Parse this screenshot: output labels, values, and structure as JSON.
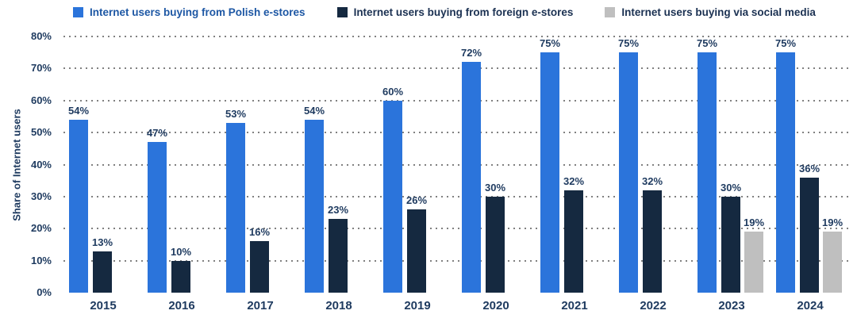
{
  "legend": {
    "items": [
      {
        "label": "Internet users buying from Polish e-stores",
        "swatch_color": "#2B74DB",
        "text_color": "#1D57A4"
      },
      {
        "label": "Internet users buying from foreign e-stores",
        "swatch_color": "#152940",
        "text_color": "#1B3152"
      },
      {
        "label": "Internet users buying via social media",
        "swatch_color": "#BFBFBF",
        "text_color": "#1B3152"
      }
    ]
  },
  "chart_data": {
    "type": "bar",
    "title": "",
    "xlabel": "",
    "ylabel": "Share of Internet users",
    "ylim": [
      0,
      80
    ],
    "ytick_step": 10,
    "tick_suffix": "%",
    "grid": "horizontal-dotted",
    "legend_position": "top",
    "categories": [
      "2015",
      "2016",
      "2017",
      "2018",
      "2019",
      "2020",
      "2021",
      "2022",
      "2023",
      "2024"
    ],
    "series": [
      {
        "name": "Internet users buying from Polish e-stores",
        "color": "#2B74DB",
        "values": [
          54,
          47,
          53,
          54,
          60,
          72,
          75,
          75,
          75,
          75
        ]
      },
      {
        "name": "Internet users buying from foreign e-stores",
        "color": "#152940",
        "values": [
          13,
          10,
          16,
          23,
          26,
          30,
          32,
          32,
          30,
          36
        ]
      },
      {
        "name": "Internet users buying via social media",
        "color": "#BFBFBF",
        "values": [
          null,
          null,
          null,
          null,
          null,
          null,
          null,
          null,
          19,
          19
        ]
      }
    ],
    "data_labels": true,
    "data_label_suffix": "%"
  },
  "colors": {
    "text": "#1E3A5F",
    "grid": "#808080",
    "background": "#FFFFFF"
  }
}
